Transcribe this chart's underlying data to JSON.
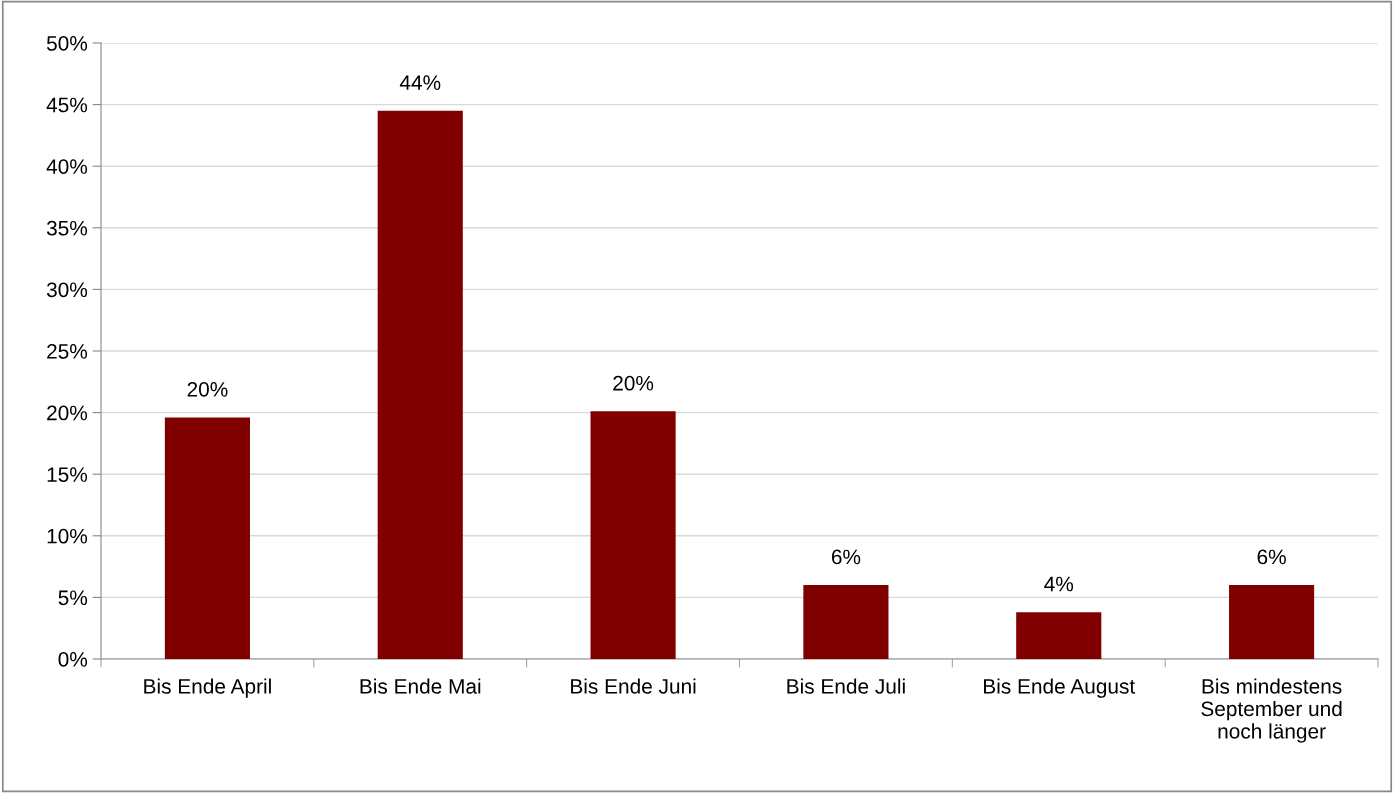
{
  "chart_data": {
    "type": "bar",
    "categories": [
      "Bis Ende April",
      "Bis Ende Mai",
      "Bis Ende Juni",
      "Bis Ende Juli",
      "Bis Ende August",
      "Bis mindestens\nSeptember und\nnoch länger"
    ],
    "values": [
      19.6,
      44.5,
      20.1,
      6.0,
      3.8,
      6.0
    ],
    "value_labels": [
      "20%",
      "44%",
      "20%",
      "6%",
      "4%",
      "6%"
    ],
    "color": "#800000",
    "ylim": [
      0,
      50
    ],
    "yticks": [
      {
        "value": 0,
        "label": "0%"
      },
      {
        "value": 5,
        "label": "5%"
      },
      {
        "value": 10,
        "label": "10%"
      },
      {
        "value": 15,
        "label": "15%"
      },
      {
        "value": 20,
        "label": "20%"
      },
      {
        "value": 25,
        "label": "25%"
      },
      {
        "value": 30,
        "label": "30%"
      },
      {
        "value": 35,
        "label": "35%"
      },
      {
        "value": 40,
        "label": "40%"
      },
      {
        "value": 45,
        "label": "45%"
      },
      {
        "value": 50,
        "label": "50%"
      }
    ],
    "grid": "y",
    "legend": false
  }
}
